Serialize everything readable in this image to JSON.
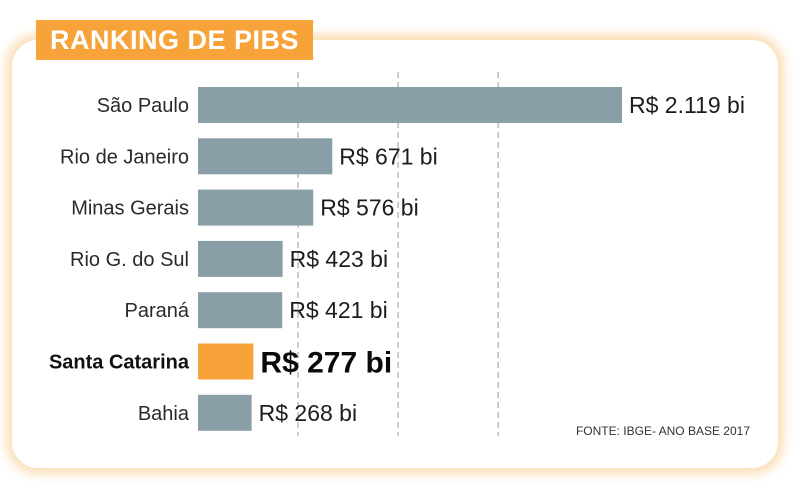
{
  "header": {
    "title": "RANKING DE PIBS"
  },
  "footer": {
    "source": "FONTE: IBGE-  ANO BASE 2017"
  },
  "colors": {
    "bar": "#8a9ea8",
    "highlight": "#f7a33a",
    "badge": "#f7a33a"
  },
  "chart_data": {
    "type": "bar",
    "orientation": "horizontal",
    "title": "RANKING DE PIBS",
    "unit": "R$ bi",
    "categories": [
      "São Paulo",
      "Rio de Janeiro",
      "Minas Gerais",
      "Rio G. do Sul",
      "Paraná",
      "Santa Catarina",
      "Bahia"
    ],
    "values": [
      2119,
      671,
      576,
      423,
      421,
      277,
      268
    ],
    "value_labels": [
      "R$ 2.119 bi",
      "R$ 671 bi",
      "R$ 576 bi",
      "R$ 423 bi",
      "R$ 421 bi",
      "R$ 277 bi",
      "R$ 268 bi"
    ],
    "highlight": "Santa Catarina",
    "xlim": [
      0,
      2119
    ],
    "grid": true,
    "gridlines": [
      500,
      1000,
      1500
    ]
  }
}
